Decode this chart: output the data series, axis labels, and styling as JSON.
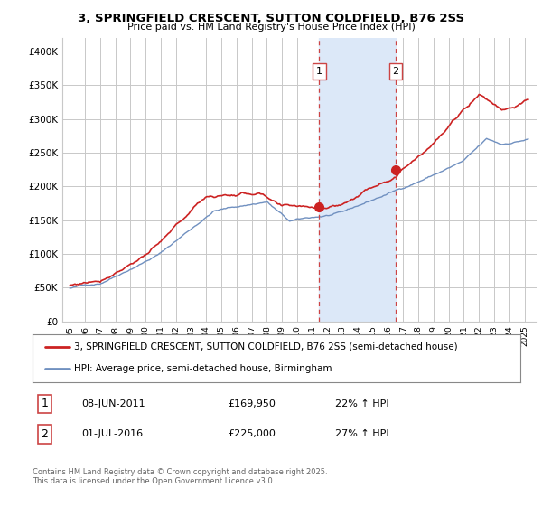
{
  "title_line1": "3, SPRINGFIELD CRESCENT, SUTTON COLDFIELD, B76 2SS",
  "title_line2": "Price paid vs. HM Land Registry's House Price Index (HPI)",
  "legend_label1": "3, SPRINGFIELD CRESCENT, SUTTON COLDFIELD, B76 2SS (semi-detached house)",
  "legend_label2": "HPI: Average price, semi-detached house, Birmingham",
  "annotation_footer": "Contains HM Land Registry data © Crown copyright and database right 2025.\nThis data is licensed under the Open Government Licence v3.0.",
  "sale1_label": "1",
  "sale1_date": "08-JUN-2011",
  "sale1_price": "£169,950",
  "sale1_hpi": "22% ↑ HPI",
  "sale2_label": "2",
  "sale2_date": "01-JUL-2016",
  "sale2_price": "£225,000",
  "sale2_hpi": "27% ↑ HPI",
  "sale1_x": 2011.44,
  "sale2_x": 2016.5,
  "sale1_price_val": 169950,
  "sale2_price_val": 225000,
  "color_red": "#cc2222",
  "color_blue": "#7090c0",
  "color_shading": "#dce8f8",
  "color_grid": "#c8c8c8",
  "color_dashed": "#cc4444",
  "background_color": "#ffffff",
  "ylim_min": 0,
  "ylim_max": 420000,
  "xlim_min": 1994.5,
  "xlim_max": 2025.8
}
